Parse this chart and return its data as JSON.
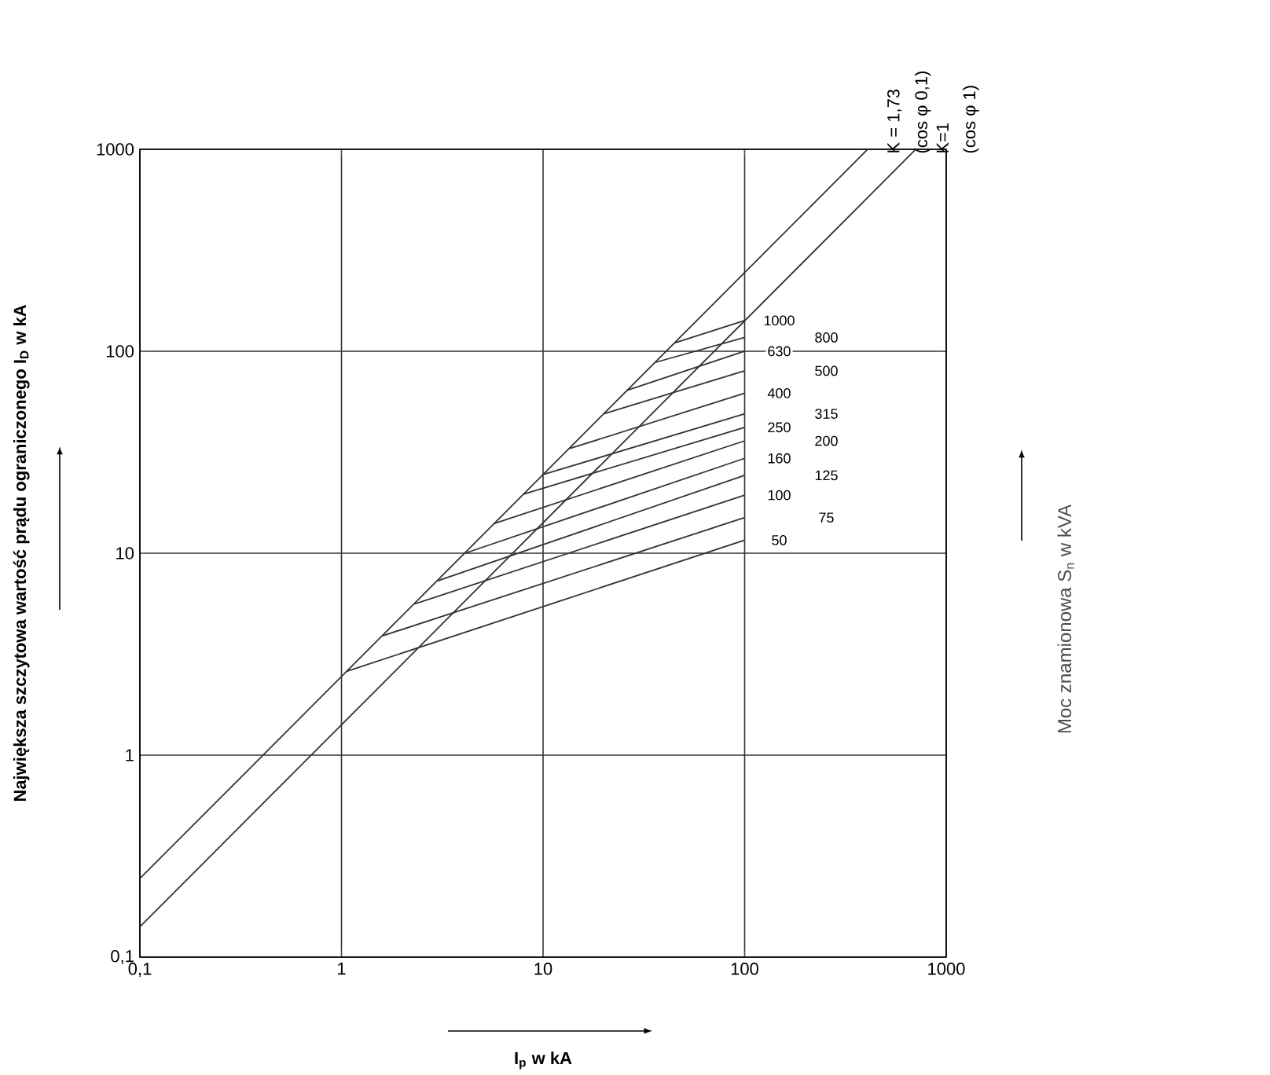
{
  "chart_data": {
    "type": "line",
    "xlabel": "**I$_{p}$ w kA**",
    "ylabel": "**Największa szczytowa wartość prądu ograniczonego I$_{D}$ w kA**",
    "xlim": [
      0.1,
      1000
    ],
    "ylim": [
      0.1,
      1000
    ],
    "log": "xy",
    "grid": true,
    "marker": "none",
    "line_style": "solid",
    "xticks": [
      {
        "value": 0.1,
        "label": "0,1"
      },
      1,
      10,
      100,
      1000
    ],
    "yticks": [
      {
        "value": 0.1,
        "label": "0,1"
      },
      1,
      10,
      100,
      1000
    ],
    "annotations": [
      {
        "text": "(cos φ 0,1)",
        "x": 408,
        "y": 1000
      },
      {
        "text": "(cos φ 1)",
        "x": 707,
        "y": 1000
      },
      "Moc znamionowa S$_{n}$ w kVA"
    ],
    "series": [
      {
        "name": "K = 1,73",
        "color": "#333333",
        "x": [
          0.1,
          408
        ],
        "values": [
          0.245,
          1000
        ]
      },
      {
        "name": "K=1",
        "color": "#333333",
        "x": [
          0.1,
          707
        ],
        "values": [
          0.1414,
          1000
        ]
      },
      {
        "name": "1000",
        "color": "#333333",
        "x": [
          45,
          100
        ],
        "values": [
          110,
          142
        ]
      },
      {
        "name": "800",
        "color": "#333333",
        "x": [
          36,
          100
        ],
        "values": [
          88,
          117
        ]
      },
      {
        "name": "630",
        "color": "#333333",
        "x": [
          26,
          100
        ],
        "values": [
          64,
          100
        ]
      },
      {
        "name": "500",
        "color": "#333333",
        "x": [
          20,
          100
        ],
        "values": [
          49,
          80
        ]
      },
      {
        "name": "400",
        "color": "#333333",
        "x": [
          13.6,
          100
        ],
        "values": [
          33,
          62
        ]
      },
      {
        "name": "315",
        "color": "#333333",
        "x": [
          10,
          100
        ],
        "values": [
          24.5,
          49
        ]
      },
      {
        "name": "250",
        "color": "#333333",
        "x": [
          8,
          100
        ],
        "values": [
          19.6,
          42
        ]
      },
      {
        "name": "200",
        "color": "#333333",
        "x": [
          5.7,
          100
        ],
        "values": [
          14,
          36
        ]
      },
      {
        "name": "160",
        "color": "#333333",
        "x": [
          4.1,
          100
        ],
        "values": [
          10,
          29.5
        ]
      },
      {
        "name": "125",
        "color": "#333333",
        "x": [
          3,
          100
        ],
        "values": [
          7.3,
          24.3
        ]
      },
      {
        "name": "100",
        "color": "#333333",
        "x": [
          2.3,
          100
        ],
        "values": [
          5.6,
          19.4
        ]
      },
      {
        "name": "75",
        "color": "#333333",
        "x": [
          1.6,
          100
        ],
        "values": [
          3.9,
          15
        ]
      },
      {
        "name": "50",
        "color": "#333333",
        "x": [
          1.06,
          100
        ],
        "values": [
          2.6,
          11.6
        ]
      }
    ]
  }
}
